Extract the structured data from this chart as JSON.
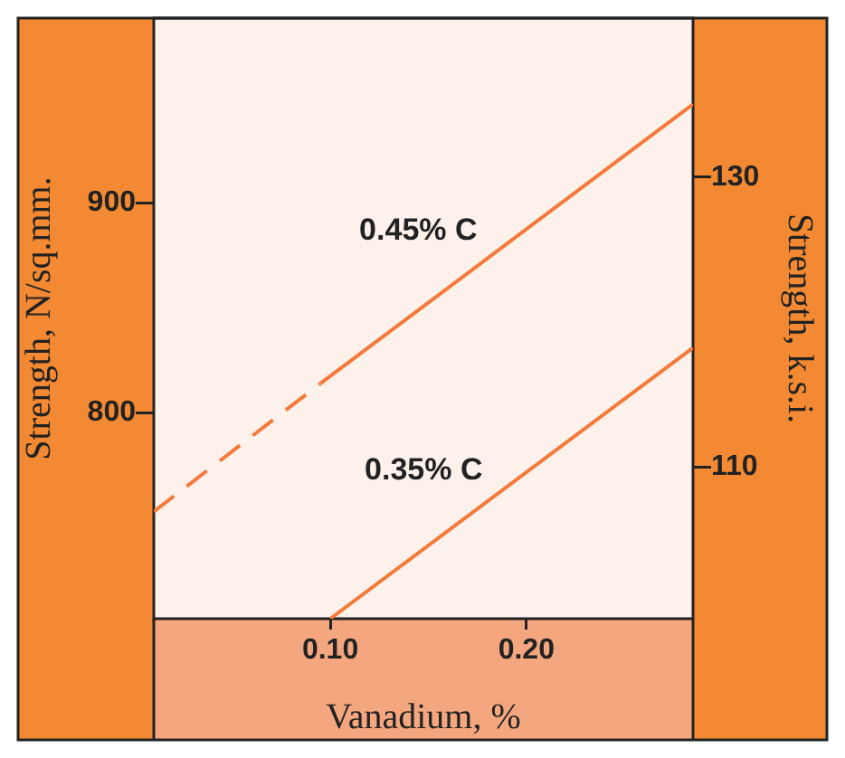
{
  "chart_data": {
    "type": "line",
    "xlabel": "Vanadium, %",
    "ylabel": "Strength, N/sq.mm.",
    "y2label": "Strength, k.s.i.",
    "xlim": [
      0.01,
      0.285
    ],
    "xticks": [
      {
        "value": 0.1,
        "label": "0.10"
      },
      {
        "value": 0.2,
        "label": "0.20"
      }
    ],
    "ylim": [
      702,
      988
    ],
    "yticks": [
      800,
      900
    ],
    "y2lim": [
      99.5,
      141
    ],
    "y2ticks": [
      110,
      130
    ],
    "grid": false,
    "legend": false,
    "marker": "none",
    "series": [
      {
        "color": "#f47a3a",
        "x": [
          0.01,
          0.095
        ],
        "values": [
          753,
          814
        ],
        "line_style": "dashed"
      },
      {
        "name": "0.45% C",
        "color": "#f47a3a",
        "x": [
          0.095,
          0.285
        ],
        "values": [
          814,
          947
        ],
        "line_style": "solid"
      },
      {
        "name": "0.35% C",
        "color": "#f47a3a",
        "x": [
          0.1,
          0.285
        ],
        "values": [
          702,
          831
        ],
        "line_style": "solid"
      }
    ]
  }
}
